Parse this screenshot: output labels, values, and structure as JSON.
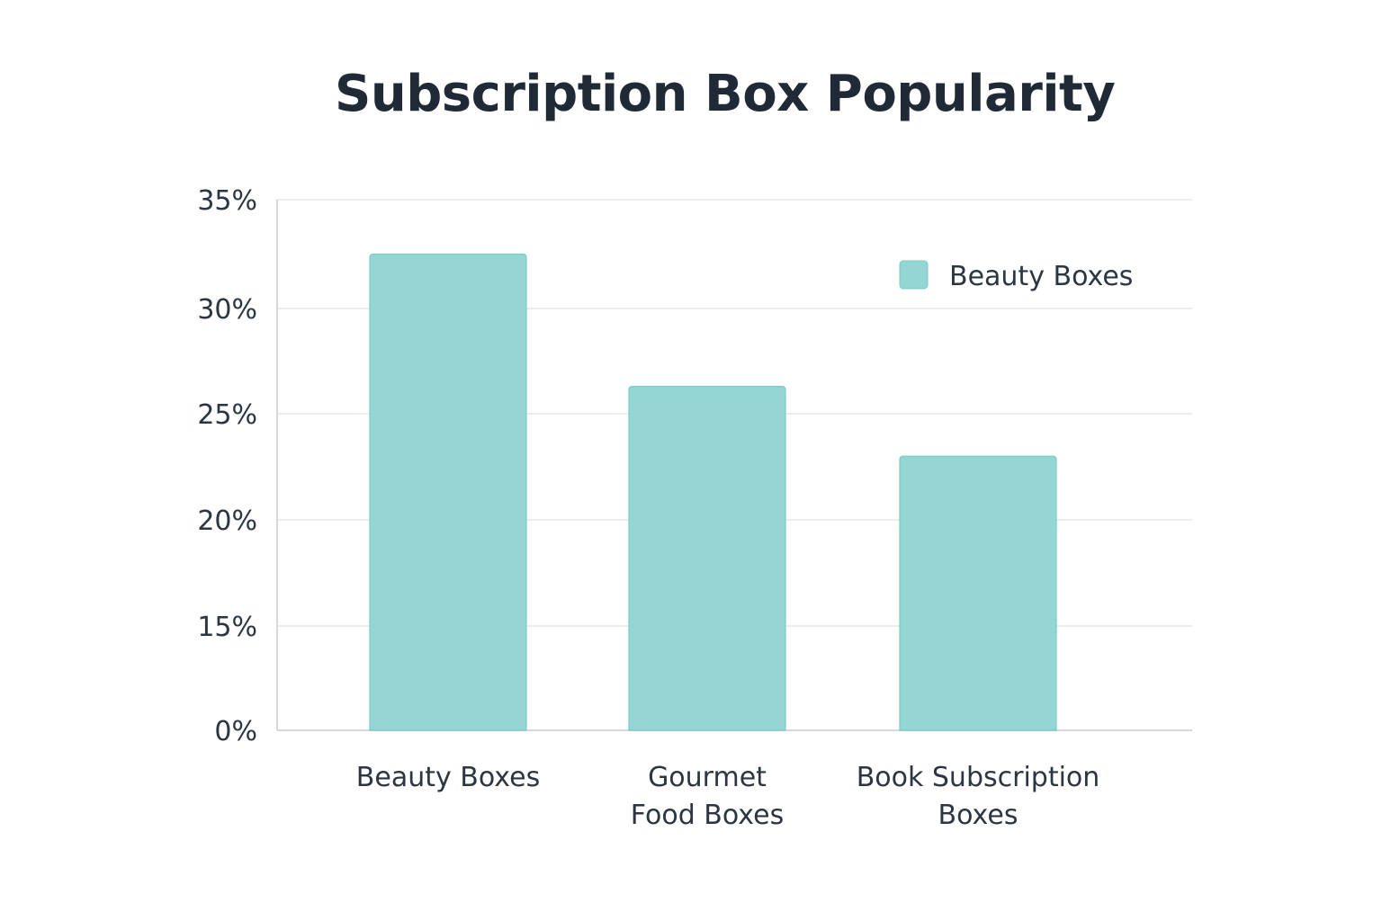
{
  "chart_data": {
    "type": "bar",
    "title": "Subscription Box Popularity",
    "categories": [
      [
        "Beauty Boxes"
      ],
      [
        "Gourmet",
        "Food Boxes"
      ],
      [
        "Book Subscription",
        "Boxes"
      ]
    ],
    "series": [
      {
        "name": "Beauty Boxes",
        "values": [
          32.5,
          26.3,
          23.0
        ]
      }
    ],
    "y_ticks": [
      {
        "value": 0,
        "label": "0%"
      },
      {
        "value": 15,
        "label": "15%"
      },
      {
        "value": 20,
        "label": "20%"
      },
      {
        "value": 25,
        "label": "25%"
      },
      {
        "value": 30,
        "label": "30%"
      },
      {
        "value": 35,
        "label": "35%"
      }
    ],
    "ylim": [
      0,
      35
    ],
    "grid": true,
    "legend_position": "top-right",
    "bar_color": "#93d6d3",
    "bar_edge_color": "#7ccbc7",
    "grid_color": "#e4e7ea",
    "axis_color": "#d5d9dd"
  }
}
